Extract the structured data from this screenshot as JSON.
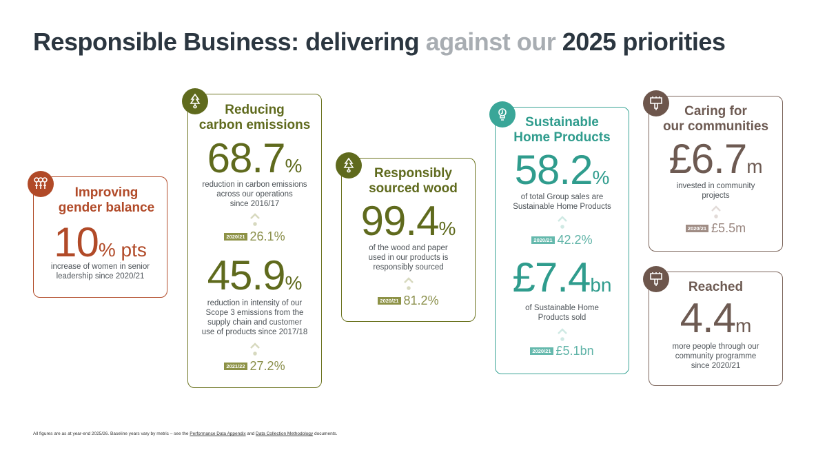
{
  "title": {
    "part1": "Responsible Business: delivering",
    "part2": "against our",
    "part3": "2025 priorities"
  },
  "cards": {
    "gender": {
      "icon": "people-icon",
      "title_l1": "Improving",
      "title_l2": "gender balance",
      "metric": {
        "value": "10",
        "unit": "% pts"
      },
      "desc_l1": "increase of women in senior",
      "desc_l2": "leadership since 2020/21"
    },
    "carbon": {
      "icon": "tree-icon",
      "title_l1": "Reducing",
      "title_l2": "carbon emissions",
      "metric1": {
        "value": "68.7",
        "unit": "%"
      },
      "desc1_l1": "reduction in carbon emissions",
      "desc1_l2": "across our operations",
      "desc1_l3": "since 2016/17",
      "prev1": {
        "tag": "2020/21",
        "value": "26.1%"
      },
      "metric2": {
        "value": "45.9",
        "unit": "%"
      },
      "desc2_l1": "reduction in intensity of our",
      "desc2_l2": "Scope 3 emissions from the",
      "desc2_l3": "supply chain and customer",
      "desc2_l4": "use of products since 2017/18",
      "prev2": {
        "tag": "2021/22",
        "value": "27.2%"
      }
    },
    "wood": {
      "icon": "tree-icon",
      "title_l1": "Responsibly",
      "title_l2": "sourced wood",
      "metric": {
        "value": "99.4",
        "unit": "%"
      },
      "desc_l1": "of the wood and paper",
      "desc_l2": "used in our products is",
      "desc_l3": "responsibly sourced",
      "prev": {
        "tag": "2020/21",
        "value": "81.2%"
      }
    },
    "sustainable": {
      "icon": "lightbulb-icon",
      "title_l1": "Sustainable",
      "title_l2": "Home Products",
      "metric1": {
        "value": "58.2",
        "unit": "%"
      },
      "desc1_l1": "of total Group sales are",
      "desc1_l2": "Sustainable Home Products",
      "prev1": {
        "tag": "2020/21",
        "value": "42.2%"
      },
      "metric2": {
        "value": "£7.4",
        "unit": "bn"
      },
      "desc2_l1": "of Sustainable Home",
      "desc2_l2": "Products sold",
      "prev2": {
        "tag": "2020/21",
        "value": "£5.1bn"
      }
    },
    "communities": {
      "icon": "house-icon",
      "title_l1": "Caring for",
      "title_l2": "our communities",
      "metric": {
        "value": "£6.7",
        "unit": "m"
      },
      "desc_l1": "invested in community",
      "desc_l2": "projects",
      "prev": {
        "tag": "2020/21",
        "value": "£5.5m"
      }
    },
    "reached": {
      "icon": "house-icon",
      "title": "Reached",
      "metric": {
        "value": "4.4",
        "unit": "m"
      },
      "desc_l1": "more people through our",
      "desc_l2": "community programme",
      "desc_l3": "since 2020/21"
    }
  },
  "footer": {
    "text1": "All figures are as at year-end 2025/26. Baseline years vary by metric – see the ",
    "link1": "Performance Data Appendix",
    "text2": " and ",
    "link2": "Data Collection Methodology",
    "text3": " documents."
  },
  "colors": {
    "orange": "#b14a28",
    "olive": "#5f6a1d",
    "teal": "#2f9c8d",
    "brown": "#6d5a52",
    "title": "#2b3640",
    "title_muted": "#a8adb2"
  }
}
